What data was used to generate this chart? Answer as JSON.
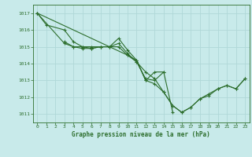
{
  "title": "Graphe pression niveau de la mer (hPa)",
  "xlabel": "Graphe pression niveau de la mer (hPa)",
  "bg_color": "#c8eaea",
  "grid_color": "#b0d8d8",
  "line_color": "#2d6e2d",
  "marker": "+",
  "xmin": 0,
  "xmax": 23,
  "ymin": 1010.5,
  "ymax": 1017.5,
  "yticks": [
    1011,
    1012,
    1013,
    1014,
    1015,
    1016,
    1017
  ],
  "xticks": [
    0,
    1,
    2,
    3,
    4,
    5,
    6,
    7,
    8,
    9,
    10,
    11,
    12,
    13,
    14,
    15,
    16,
    17,
    18,
    19,
    20,
    21,
    22,
    23
  ],
  "curves": [
    {
      "x": [
        0,
        1,
        3,
        4,
        5,
        6,
        7,
        8,
        9,
        10,
        11,
        12,
        13,
        14,
        15
      ],
      "y": [
        1017.0,
        1016.3,
        1016.0,
        1015.3,
        1015.0,
        1015.0,
        1015.0,
        1015.0,
        1015.2,
        1014.6,
        1014.1,
        1013.1,
        1013.0,
        1013.5,
        1011.1
      ]
    },
    {
      "x": [
        0,
        3,
        4,
        5,
        6,
        7,
        8,
        9,
        10,
        11,
        12,
        13,
        14
      ],
      "y": [
        1017.0,
        1015.2,
        1015.0,
        1014.9,
        1014.9,
        1015.0,
        1015.0,
        1015.5,
        1014.8,
        1014.2,
        1013.0,
        1013.5,
        1013.5
      ]
    },
    {
      "x": [
        3,
        4,
        5,
        6,
        7,
        8,
        9,
        10,
        11,
        12,
        13,
        14,
        15,
        16,
        17,
        18,
        19,
        20,
        21,
        22,
        23
      ],
      "y": [
        1015.3,
        1015.0,
        1015.0,
        1014.9,
        1015.0,
        1015.0,
        1015.0,
        1014.5,
        1014.1,
        1013.5,
        1013.1,
        1012.3,
        1011.5,
        1011.1,
        1011.4,
        1011.9,
        1012.1,
        1012.5,
        1012.7,
        1012.5,
        1013.1
      ]
    },
    {
      "x": [
        0,
        10,
        11,
        12,
        13,
        14,
        15,
        16,
        17,
        18,
        19,
        20,
        21,
        22,
        23
      ],
      "y": [
        1017.0,
        1014.5,
        1014.2,
        1013.0,
        1012.8,
        1012.3,
        1011.5,
        1011.1,
        1011.4,
        1011.9,
        1012.2,
        1012.5,
        1012.7,
        1012.5,
        1013.1
      ]
    }
  ]
}
